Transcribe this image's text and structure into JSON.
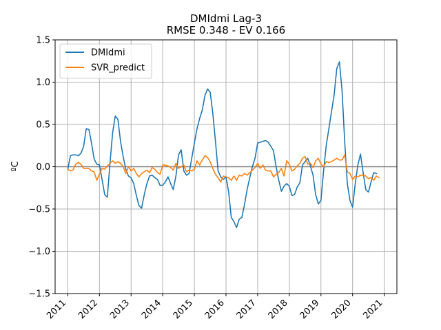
{
  "chart_data": {
    "type": "line",
    "title": "DMIdmi Lag-3",
    "subtitle": "RMSE 0.348 - EV 0.166",
    "xlabel": "",
    "ylabel": "ºC",
    "x_start": "2011-01",
    "x_step": "monthly",
    "xlim": [
      2010.6,
      2021.4
    ],
    "ylim": [
      -1.5,
      1.5
    ],
    "x_ticks": [
      2011,
      2012,
      2013,
      2014,
      2015,
      2016,
      2017,
      2018,
      2019,
      2020,
      2021
    ],
    "x_tick_labels": [
      "2011",
      "2012",
      "2013",
      "2014",
      "2015",
      "2016",
      "2017",
      "2018",
      "2019",
      "2020",
      "2021"
    ],
    "y_ticks": [
      -1.5,
      -1.0,
      -0.5,
      0.0,
      0.5,
      1.0,
      1.5
    ],
    "y_tick_labels": [
      "−1.5",
      "−1.0",
      "−0.5",
      "0.0",
      "0.5",
      "1.0",
      "1.5"
    ],
    "grid": true,
    "zero_line": true,
    "legend_position": "top-left",
    "series": [
      {
        "name": "DMIdmi",
        "color": "#1f77b4",
        "values": [
          -0.03,
          0.13,
          0.14,
          0.14,
          0.13,
          0.16,
          0.24,
          0.45,
          0.44,
          0.28,
          0.09,
          0.03,
          0.02,
          -0.15,
          -0.33,
          -0.36,
          0.04,
          0.4,
          0.6,
          0.56,
          0.3,
          0.12,
          -0.03,
          -0.11,
          -0.13,
          -0.2,
          -0.34,
          -0.46,
          -0.49,
          -0.33,
          -0.2,
          -0.11,
          -0.1,
          -0.13,
          -0.15,
          -0.22,
          -0.22,
          -0.18,
          -0.12,
          -0.2,
          -0.27,
          -0.11,
          0.14,
          0.2,
          -0.05,
          -0.1,
          -0.08,
          0.1,
          0.28,
          0.45,
          0.57,
          0.67,
          0.84,
          0.92,
          0.88,
          0.63,
          0.3,
          -0.05,
          -0.12,
          -0.15,
          -0.12,
          -0.3,
          -0.6,
          -0.65,
          -0.72,
          -0.62,
          -0.6,
          -0.45,
          -0.27,
          -0.13,
          0.0,
          0.1,
          0.28,
          0.29,
          0.3,
          0.31,
          0.29,
          0.24,
          0.19,
          0.0,
          -0.16,
          -0.29,
          -0.23,
          -0.2,
          -0.23,
          -0.34,
          -0.33,
          -0.24,
          -0.19,
          0.02,
          0.06,
          0.1,
          0.01,
          -0.1,
          -0.33,
          -0.44,
          -0.4,
          -0.05,
          0.25,
          0.45,
          0.65,
          0.85,
          1.16,
          1.24,
          0.9,
          0.3,
          -0.2,
          -0.4,
          -0.48,
          -0.2,
          0.02,
          0.15,
          -0.07,
          -0.27,
          -0.3,
          -0.18,
          -0.07,
          -0.08
        ]
      },
      {
        "name": "SVR_predict",
        "color": "#ff7f0e",
        "values": [
          -0.03,
          -0.05,
          -0.04,
          0.03,
          0.05,
          0.03,
          -0.02,
          -0.02,
          -0.02,
          -0.05,
          -0.06,
          -0.16,
          -0.09,
          -0.02,
          -0.03,
          0.01,
          0.04,
          0.07,
          0.04,
          0.06,
          0.04,
          0.0,
          -0.08,
          0.0,
          -0.05,
          -0.02,
          -0.08,
          -0.12,
          -0.08,
          -0.06,
          -0.04,
          -0.07,
          -0.01,
          -0.03,
          -0.07,
          -0.09,
          0.02,
          0.02,
          0.01,
          -0.01,
          -0.04,
          0.04,
          -0.02,
          0.0,
          0.02,
          -0.06,
          -0.04,
          -0.05,
          -0.03,
          0.07,
          0.02,
          0.08,
          0.13,
          0.11,
          0.06,
          -0.02,
          -0.09,
          -0.13,
          -0.18,
          -0.11,
          -0.12,
          -0.13,
          -0.16,
          -0.11,
          -0.16,
          -0.1,
          -0.11,
          -0.08,
          -0.1,
          -0.07,
          -0.04,
          -0.01,
          0.04,
          -0.02,
          0.02,
          -0.04,
          -0.05,
          -0.05,
          -0.12,
          -0.09,
          -0.07,
          -0.02,
          -0.11,
          0.07,
          0.03,
          -0.05,
          -0.03,
          0.01,
          0.04,
          0.1,
          0.12,
          0.03,
          0.04,
          -0.01,
          0.07,
          0.1,
          0.03,
          0.0,
          0.06,
          0.05,
          0.06,
          0.08,
          0.1,
          0.08,
          0.08,
          0.14,
          -0.06,
          -0.08,
          -0.15,
          -0.11,
          -0.12,
          -0.1,
          -0.1,
          -0.11,
          -0.14,
          -0.13,
          -0.16,
          -0.11,
          -0.13
        ]
      }
    ]
  }
}
